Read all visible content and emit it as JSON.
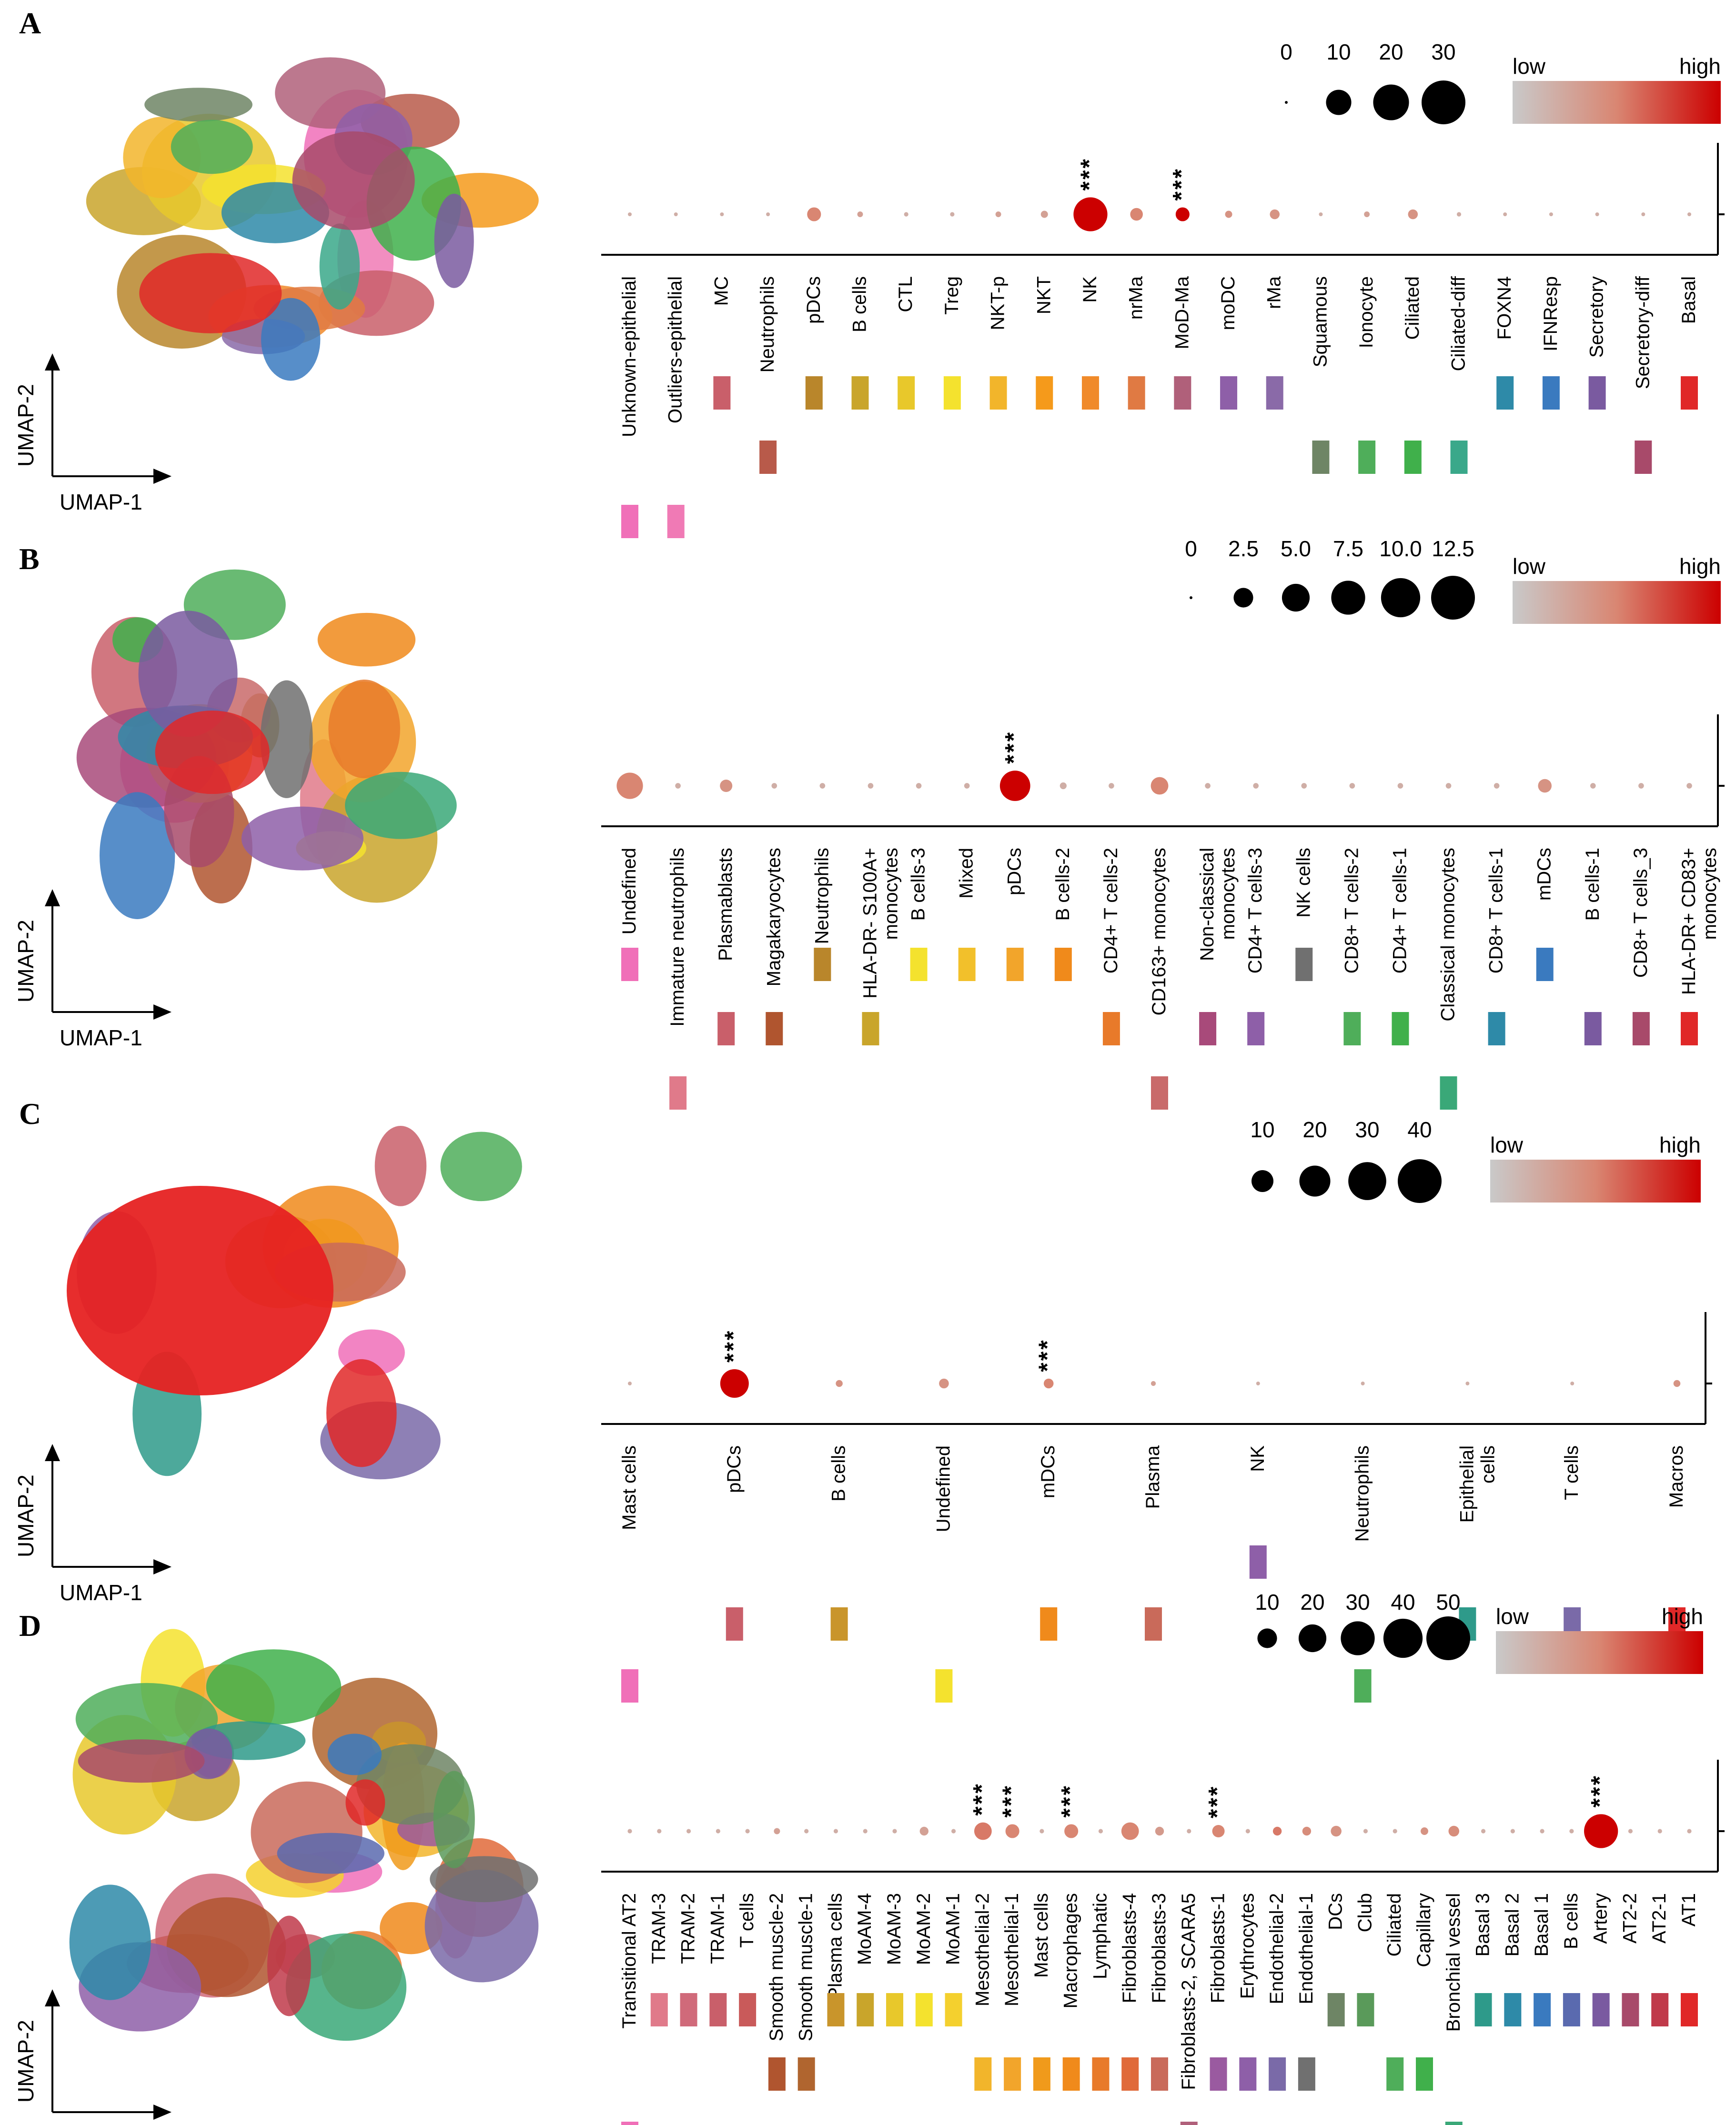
{
  "umap": {
    "x_label": "UMAP-1",
    "y_label": "UMAP-2"
  },
  "legend": {
    "low": "low",
    "high": "high"
  },
  "colors": {
    "low": "#c9c9c9",
    "mid": "#d98672",
    "high": "#cc0000"
  },
  "chart_data": [
    {
      "panel": "A",
      "type": "scatter",
      "size_scale": [
        0,
        10,
        20,
        30
      ],
      "size_labels": [
        "0",
        "10",
        "20",
        "30"
      ],
      "categories": [
        "Unknown-epithelial",
        "Outliers-epithelial",
        "MC",
        "Neutrophils",
        "pDCs",
        "B cells",
        "CTL",
        "Treg",
        "NKT-p",
        "NKT",
        "NK",
        "nrMa",
        "MoD-Ma",
        "moDC",
        "rMa",
        "Squamous",
        "Ionocyte",
        "Ciliated",
        "Ciliated-diff",
        "FOXN4",
        "IFNResp",
        "Secretory",
        "Secretory-diff",
        "Basal"
      ],
      "label_rows": [
        2,
        2,
        0,
        1,
        0,
        0,
        0,
        0,
        0,
        0,
        0,
        0,
        0,
        0,
        0,
        1,
        1,
        1,
        1,
        0,
        0,
        0,
        1,
        0
      ],
      "values": [
        0.2,
        0.2,
        0.2,
        0.2,
        3,
        0.5,
        0.3,
        0.3,
        0.5,
        0.8,
        18,
        2.5,
        3,
        0.8,
        1.5,
        0.2,
        0.5,
        1.5,
        0.3,
        0.2,
        0.2,
        0.2,
        0.2,
        0.2
      ],
      "intensity": [
        0.2,
        0.2,
        0.2,
        0.2,
        0.5,
        0.3,
        0.2,
        0.2,
        0.3,
        0.3,
        1,
        0.5,
        1,
        0.4,
        0.4,
        0.2,
        0.3,
        0.4,
        0.2,
        0.2,
        0.2,
        0.2,
        0.2,
        0.2
      ],
      "significant": [
        false,
        false,
        false,
        false,
        false,
        false,
        false,
        false,
        false,
        false,
        true,
        false,
        true,
        false,
        false,
        false,
        false,
        false,
        false,
        false,
        false,
        false,
        false,
        false
      ],
      "category_colors": [
        "#f06fb8",
        "#f07ab5",
        "#c95f6a",
        "#b85a4a",
        "#b9862b",
        "#c9a52b",
        "#e8c82b",
        "#f4e22e",
        "#f2b52b",
        "#f59a1b",
        "#f08a2a",
        "#e07a43",
        "#b0607a",
        "#8e5fa8",
        "#8a6aa8",
        "#6e8565",
        "#4fae5a",
        "#40b04b",
        "#3aa88a",
        "#2e8aa8",
        "#3a7abf",
        "#7a5aa0",
        "#a84a6a",
        "#e02828"
      ],
      "significance_mark": "***"
    },
    {
      "panel": "B",
      "type": "scatter",
      "size_scale": [
        0,
        2.5,
        5.0,
        7.5,
        10.0,
        12.5
      ],
      "size_labels": [
        "0",
        "2.5",
        "5.0",
        "7.5",
        "10.0",
        "12.5"
      ],
      "categories": [
        "Undefined",
        "Immature neutrophils",
        "Plasmablasts",
        "Magakaryocytes",
        "Neutrophils",
        "HLA-DR- S100A+\nmonocytes",
        "B cells-3",
        "Mixed",
        "pDCs",
        "B cells-2",
        "CD4+ T cells-2",
        "CD163+ monocytes",
        "Non-classical\nmonocytes",
        "CD4+ T cells-3",
        "NK cells",
        "CD8+ T cells-2",
        "CD4+ T cells-1",
        "Classical monocytes",
        "CD8+ T cells-1",
        "mDCs",
        "B cells-1",
        "CD8+ T cells_3",
        "HLA-DR+ CD83+\nmonocytes"
      ],
      "label_rows": [
        0,
        2,
        1,
        1,
        0,
        1,
        0,
        0,
        0,
        0,
        1,
        2,
        1,
        1,
        0,
        1,
        1,
        2,
        1,
        0,
        1,
        1,
        1
      ],
      "values": [
        4.5,
        0.2,
        1,
        0.2,
        0.2,
        0.2,
        0.2,
        0.2,
        6,
        0.3,
        0.2,
        2,
        0.2,
        0.2,
        0.2,
        0.2,
        0.2,
        0.2,
        0.2,
        1.2,
        0.2,
        0.2,
        0.2
      ],
      "intensity": [
        0.5,
        0.2,
        0.4,
        0.2,
        0.2,
        0.2,
        0.2,
        0.2,
        1,
        0.2,
        0.2,
        0.5,
        0.2,
        0.2,
        0.2,
        0.2,
        0.2,
        0.2,
        0.2,
        0.4,
        0.2,
        0.2,
        0.2
      ],
      "significant": [
        false,
        false,
        false,
        false,
        false,
        false,
        false,
        false,
        true,
        false,
        false,
        false,
        false,
        false,
        false,
        false,
        false,
        false,
        false,
        false,
        false,
        false,
        false
      ],
      "category_colors": [
        "#f06fb8",
        "#e07a8a",
        "#c95f6a",
        "#b0552f",
        "#b9862b",
        "#c9a52b",
        "#f4e22e",
        "#f2c02b",
        "#f2a52b",
        "#f08a1b",
        "#e87a2a",
        "#c96a6a",
        "#a84a7a",
        "#8e5fa8",
        "#707070",
        "#4fae5a",
        "#40b04b",
        "#3aa878",
        "#2e8aa8",
        "#3a7abf",
        "#7a5aa0",
        "#a84a6a",
        "#e02828"
      ],
      "significance_mark": "***"
    },
    {
      "panel": "C",
      "type": "scatter",
      "size_scale": [
        10,
        20,
        30,
        40
      ],
      "size_labels": [
        "10",
        "20",
        "30",
        "40"
      ],
      "categories": [
        "Mast cells",
        "pDCs",
        "B cells",
        "Undefined",
        "mDCs",
        "Plasma",
        "NK",
        "Neutrophils",
        "Epithelial\ncells",
        "T cells",
        "Macros"
      ],
      "label_rows": [
        2,
        1,
        1,
        2,
        1,
        1,
        0,
        2,
        1,
        1,
        1
      ],
      "values": [
        0.3,
        17,
        1,
        2,
        2,
        0.5,
        0.3,
        0.3,
        0.3,
        0.3,
        1
      ],
      "intensity": [
        0.2,
        1,
        0.4,
        0.4,
        0.5,
        0.3,
        0.2,
        0.2,
        0.2,
        0.2,
        0.4
      ],
      "significant": [
        false,
        true,
        false,
        false,
        true,
        false,
        false,
        false,
        false,
        false,
        false
      ],
      "category_colors": [
        "#f06fb8",
        "#c95f6a",
        "#c9952b",
        "#f4e22e",
        "#f08a1b",
        "#c96a5a",
        "#8e5fa8",
        "#4fae5a",
        "#2e9a8a",
        "#7a6aa8",
        "#e02828"
      ],
      "significance_mark": "***"
    },
    {
      "panel": "D",
      "type": "scatter",
      "size_scale": [
        10,
        20,
        30,
        40,
        50
      ],
      "size_labels": [
        "10",
        "20",
        "30",
        "40",
        "50"
      ],
      "categories": [
        "Transitional AT2",
        "TRAM-3",
        "TRAM-2",
        "TRAM-1",
        "T cells",
        "Smooth muscle-2",
        "Smooth muscle-1",
        "Plasma cells",
        "MoAM-4",
        "MoAM-3",
        "MoAM-2",
        "MoAM-1",
        "Mesothelial-2",
        "Mesothelial-1",
        "Mast cells",
        "Macrophages",
        "Lymphatic",
        "Fibroblasts-4",
        "Fibroblasts-3",
        "Fibroblasts-2, SCARA5",
        "Fibroblasts-1",
        "Erythrocytes",
        "Endothelial-2",
        "Endothelial-1",
        "DCs",
        "Club",
        "Ciliated",
        "Capillary",
        "Bronchial vessel",
        "Basal 3",
        "Basal 2",
        "Basal 1",
        "B cells",
        "Artery",
        "AT2-2",
        "AT2-1",
        "AT1"
      ],
      "label_rows": [
        2,
        0,
        0,
        0,
        0,
        1,
        1,
        0,
        0,
        0,
        0,
        0,
        1,
        1,
        1,
        1,
        1,
        1,
        1,
        2,
        1,
        1,
        1,
        1,
        0,
        0,
        1,
        1,
        2,
        0,
        0,
        0,
        0,
        0,
        0,
        0,
        0
      ],
      "values": [
        0.5,
        0.5,
        0.5,
        0.5,
        0.5,
        1,
        0.5,
        0.5,
        0.5,
        0.5,
        2,
        0.5,
        8,
        5,
        0.5,
        5,
        0.5,
        8,
        2,
        0.5,
        4,
        0.5,
        2,
        2,
        3,
        0.5,
        0.5,
        1.5,
        3,
        0.5,
        0.5,
        0.5,
        0.5,
        30,
        0.5,
        0.5,
        0.5
      ],
      "intensity": [
        0.2,
        0.2,
        0.2,
        0.2,
        0.2,
        0.3,
        0.2,
        0.2,
        0.2,
        0.2,
        0.3,
        0.2,
        0.55,
        0.5,
        0.2,
        0.5,
        0.2,
        0.5,
        0.35,
        0.2,
        0.5,
        0.2,
        0.55,
        0.45,
        0.4,
        0.2,
        0.2,
        0.4,
        0.45,
        0.2,
        0.2,
        0.2,
        0.2,
        1,
        0.2,
        0.2,
        0.2
      ],
      "significant": [
        false,
        false,
        false,
        false,
        false,
        false,
        false,
        false,
        false,
        false,
        false,
        false,
        true,
        true,
        false,
        true,
        false,
        false,
        false,
        false,
        true,
        false,
        false,
        false,
        false,
        false,
        false,
        false,
        false,
        false,
        false,
        false,
        false,
        true,
        false,
        false,
        false
      ],
      "category_colors": [
        "#f06fb8",
        "#e07a8a",
        "#d06a7a",
        "#c95f6a",
        "#c95a5a",
        "#b0552f",
        "#b0652f",
        "#c9952b",
        "#c9a52b",
        "#e8c82b",
        "#f4e22e",
        "#f4d02e",
        "#f2b52b",
        "#f2a52b",
        "#f09a1b",
        "#f08a1b",
        "#e87a2a",
        "#e06a3a",
        "#c96a5a",
        "#b0607a",
        "#9a5aa0",
        "#8e5fa8",
        "#7a6aa8",
        "#707070",
        "#6e8565",
        "#5a9a5a",
        "#4fae5a",
        "#40b04b",
        "#3aa878",
        "#2e9a8a",
        "#2e8aa8",
        "#3a7abf",
        "#5a6aaf",
        "#7a5aa0",
        "#a84a6a",
        "#c03a4a",
        "#e02828"
      ],
      "significance_mark": "***"
    }
  ]
}
